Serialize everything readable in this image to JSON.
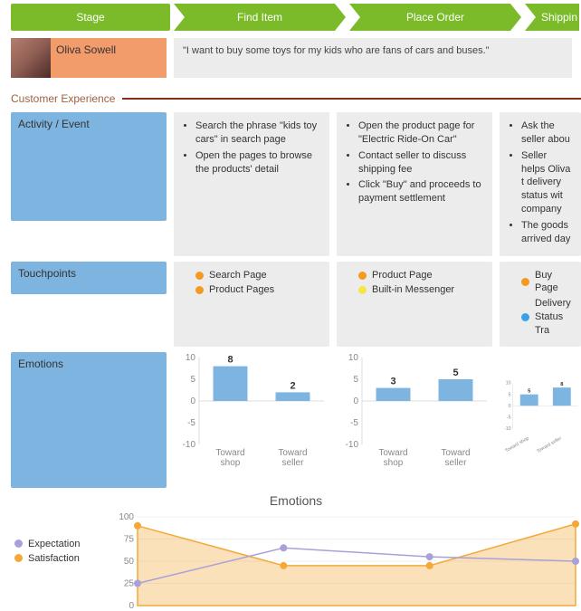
{
  "colors": {
    "stage_green": "#7bbb2a",
    "persona_orange": "#f29b6b",
    "row_blue": "#7db4e0",
    "cell_grey": "#ececec",
    "section_line": "#8a2b1a",
    "bar_fill": "#7db4e0",
    "dot_orange": "#f29b20",
    "dot_yellow": "#f5e642",
    "dot_blue": "#3aa0e8",
    "expectation": "#a9a0d8",
    "satisfaction": "#f2a93a"
  },
  "stages": {
    "header": "Stage",
    "items": [
      "Find Item",
      "Place Order",
      "Shippin"
    ]
  },
  "persona": {
    "name": "Oliva Sowell",
    "quote": "\"I want to buy some toys for my kids who are fans of cars and buses.\""
  },
  "section_title": "Customer Experience",
  "rows": {
    "activity": {
      "label": "Activity / Event",
      "cols": [
        [
          "Search the phrase \"kids toy cars\" in search page",
          "Open the pages to browse the products' detail"
        ],
        [
          "Open the product page for \"Electric Ride-On Car\"",
          "Contact seller to discuss shipping fee",
          "Click \"Buy\" and proceeds to payment settlement"
        ],
        [
          "Ask the seller abou",
          "Seller helps Oliva t delivery status wit company",
          "The goods arrived day"
        ]
      ],
      "label_height": 120
    },
    "touchpoints": {
      "label": "Touchpoints",
      "cols": [
        [
          {
            "color": "dot_orange",
            "text": "Search Page"
          },
          {
            "color": "dot_orange",
            "text": "Product Pages"
          }
        ],
        [
          {
            "color": "dot_orange",
            "text": "Product Page"
          },
          {
            "color": "dot_yellow",
            "text": "Built-in Messenger"
          }
        ],
        [
          {
            "color": "dot_orange",
            "text": "Buy Page"
          },
          {
            "color": "dot_blue",
            "text": "Delivery Status Tra"
          }
        ]
      ],
      "label_height": 36
    },
    "emotions": {
      "label": "Emotions",
      "label_height": 150,
      "ylim": [
        -10,
        10
      ],
      "yticks": [
        10,
        5,
        0,
        -5,
        -10
      ],
      "categories": [
        "Toward shop",
        "Toward seller"
      ],
      "cols": [
        {
          "values": [
            8,
            2
          ]
        },
        {
          "values": [
            3,
            5
          ]
        },
        {
          "values": [
            5,
            8
          ]
        }
      ]
    }
  },
  "line_chart": {
    "title": "Emotions",
    "legend": [
      {
        "color": "expectation",
        "text": "Expectation"
      },
      {
        "color": "satisfaction",
        "text": "Satisfaction"
      }
    ],
    "ylim": [
      0,
      100
    ],
    "yticks": [
      100,
      75,
      50,
      25,
      0
    ],
    "x_count": 4,
    "series": {
      "expectation": [
        25,
        65,
        55,
        50
      ],
      "satisfaction": [
        90,
        45,
        45,
        92
      ]
    }
  }
}
